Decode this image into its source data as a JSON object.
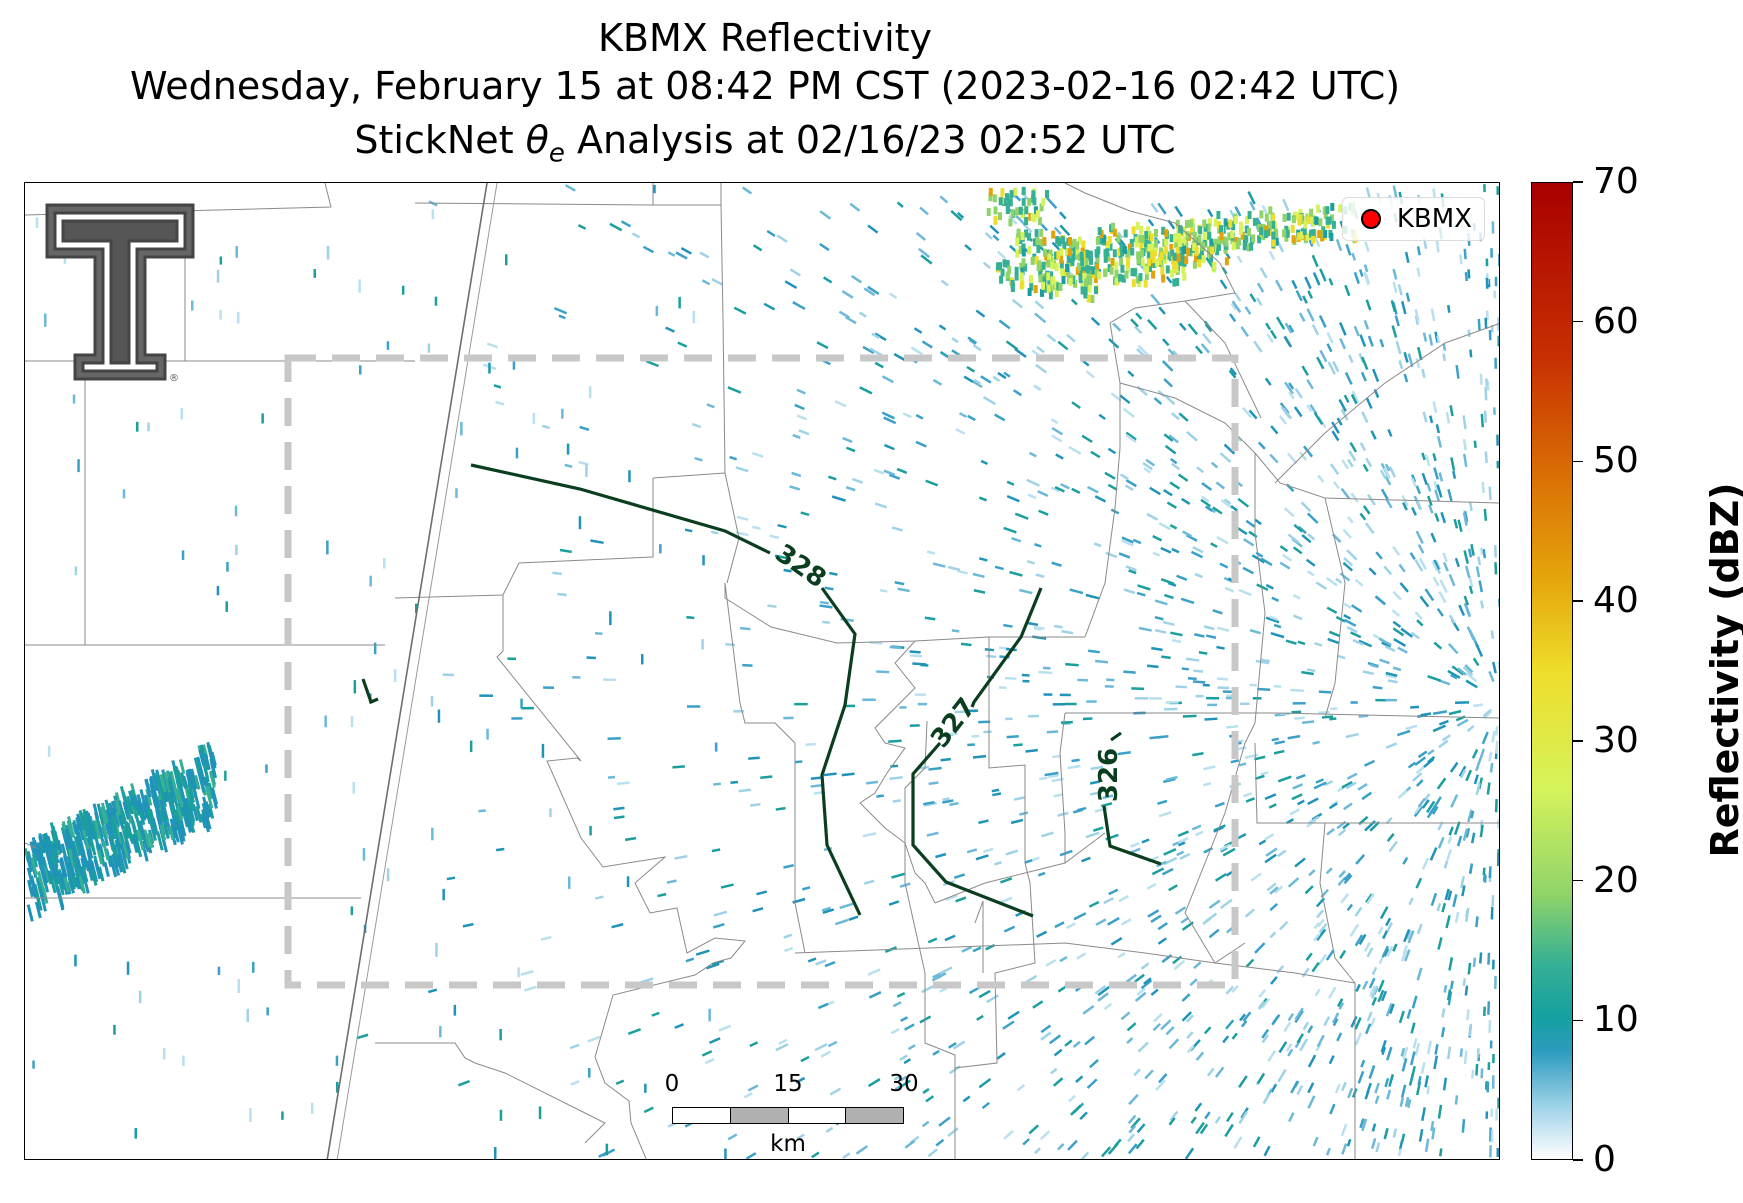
{
  "title": {
    "line1": "KBMX Reflectivity",
    "line2": "Wednesday, February 15 at 08:42 PM CST (2023-02-16 02:42 UTC)",
    "line3_prefix": "StickNet ",
    "line3_symbol": "θ",
    "line3_subscript": "e",
    "line3_suffix": " Analysis at 02/16/23 02:52 UTC"
  },
  "legend": {
    "label": "KBMX",
    "marker_color": "#ff0000"
  },
  "scale_bar": {
    "ticks": [
      "0",
      "15",
      "30"
    ],
    "unit": "km"
  },
  "colorbar": {
    "label": "Reflectivity (dBZ)",
    "ticks": [
      "0",
      "10",
      "20",
      "30",
      "40",
      "50",
      "60",
      "70"
    ],
    "range": [
      0,
      70
    ]
  },
  "contours": [
    {
      "value": "328",
      "color": "#0b3d1f"
    },
    {
      "value": "327",
      "color": "#0b3d1f"
    },
    {
      "value": "326",
      "color": "#0b3d1f"
    }
  ],
  "logo": {
    "name": "Texas Tech Double T",
    "mark": "®"
  },
  "analysis_box": {
    "style": "dashed",
    "color": "#c8c8c8"
  }
}
